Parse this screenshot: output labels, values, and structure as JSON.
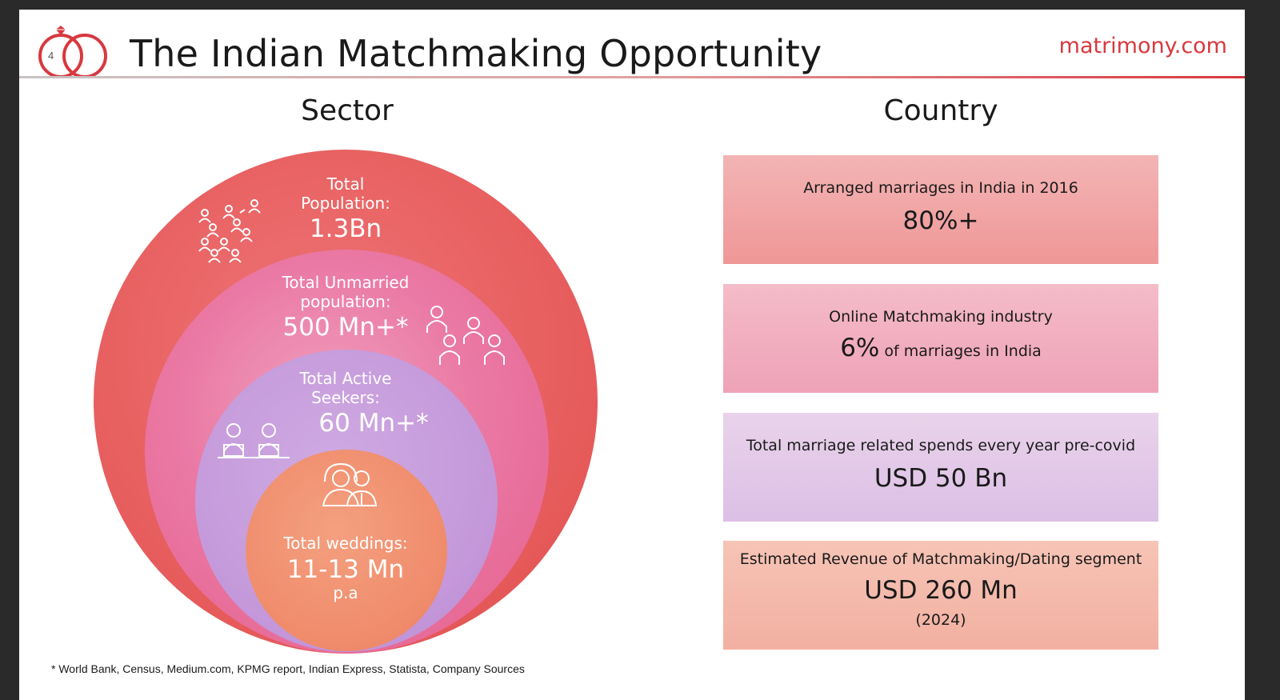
{
  "slide": {
    "page_number": "4",
    "title": "The Indian Matchmaking Opportunity",
    "brand": "matrimony.com",
    "footnote": "* World Bank, Census, Medium.com, KPMG report, Indian Express, Statista, Company Sources"
  },
  "colors": {
    "brand": "#d8383f",
    "outer_circle": "#e65a5a",
    "unmarried_circle": "#ea79a4",
    "seekers_circle": "#c59adb",
    "weddings_circle": "#ef8b6b"
  },
  "sector": {
    "heading": "Sector",
    "population": {
      "label_line1": "Total",
      "label_line2": "Population:",
      "value": "1.3Bn",
      "icon": "crowd-icon"
    },
    "unmarried": {
      "label_line1": "Total  Unmarried",
      "label_line2": "population:",
      "value": "500 Mn+*",
      "icon": "people-group-icon"
    },
    "seekers": {
      "label_line1": "Total Active",
      "label_line2": "Seekers:",
      "value": "60 Mn+*",
      "icon": "couple-at-laptops-icon"
    },
    "weddings": {
      "label": "Total weddings:",
      "value": "11-13 Mn",
      "sub": "p.a",
      "icon": "bride-groom-icon"
    }
  },
  "country": {
    "heading": "Country",
    "cards": [
      {
        "label": "Arranged marriages in India in 2016",
        "value": "80%+"
      },
      {
        "label": "Online Matchmaking industry",
        "value": "6%",
        "value_suffix": " of marriages in India"
      },
      {
        "label": "Total marriage related spends every year pre-covid",
        "value": "USD 50 Bn"
      },
      {
        "label": "Estimated Revenue of Matchmaking/Dating segment",
        "value": "USD 260 Mn",
        "note": "(2024)"
      }
    ]
  }
}
